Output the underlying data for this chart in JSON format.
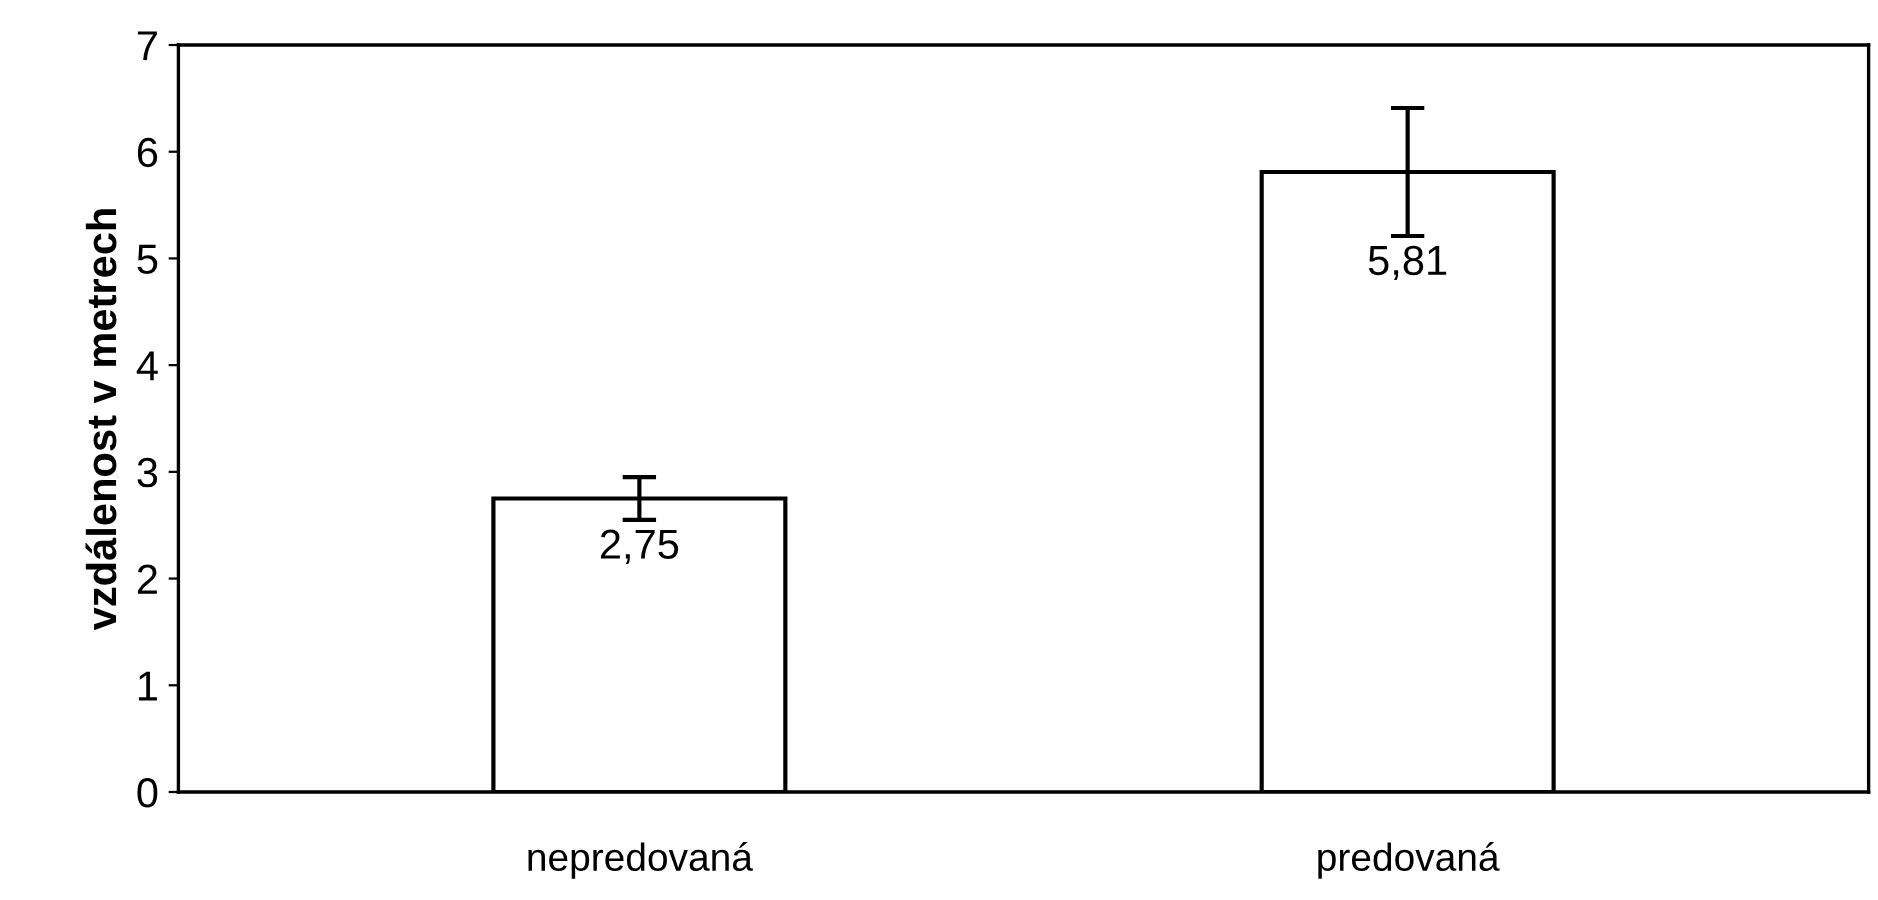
{
  "chart_data": {
    "type": "bar",
    "ylabel": "vzdálenost v metrech",
    "categories": [
      "nepredovaná",
      "predovaná"
    ],
    "values": [
      2.75,
      5.81
    ],
    "errors": [
      0.2,
      0.6
    ],
    "value_labels": [
      "2,75",
      "5,81"
    ],
    "color": "#ffffff",
    "ylim": [
      0,
      7
    ],
    "yticks": [
      0,
      1,
      2,
      3,
      4,
      5,
      6,
      7
    ],
    "grid": false,
    "legend": false
  }
}
